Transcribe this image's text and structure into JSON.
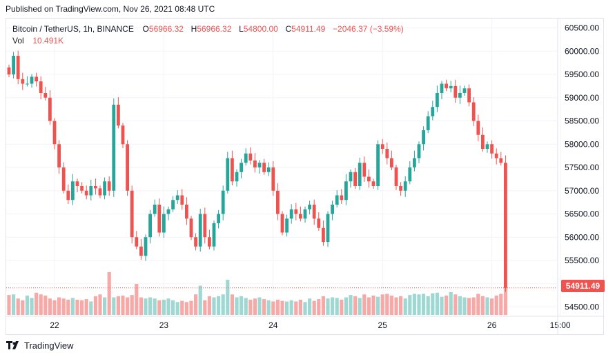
{
  "header": {
    "published": "Published on TradingView.com, Nov 26, 2021 08:48 UTC"
  },
  "legend": {
    "symbol": "Bitcoin / TetherUS, 1h, BINANCE",
    "o_label": "O",
    "o_value": "56966.32",
    "h_label": "H",
    "h_value": "56966.32",
    "l_label": "L",
    "l_value": "54800.00",
    "c_label": "C",
    "c_value": "54911.49",
    "change": "−2046.37 (−3.59%)",
    "vol_label": "Vol",
    "vol_value": "10.491K"
  },
  "brand": {
    "name": "TradingView"
  },
  "colors": {
    "up": "#26a69a",
    "down": "#ef5350",
    "vol_up": "#9fd8d2",
    "vol_down": "#f7a9a7",
    "grid": "#f0f3fa",
    "text": "#131722"
  },
  "chart_data": {
    "type": "candlestick",
    "symbol": "Bitcoin / TetherUS",
    "interval": "1h",
    "exchange": "BINANCE",
    "y_axis": {
      "range": [
        54300,
        60700
      ],
      "ticks": [
        54500,
        55000,
        55500,
        56000,
        56500,
        57000,
        57500,
        58000,
        58500,
        59000,
        59500,
        60000,
        60500
      ],
      "tick_labels": [
        "54500.00",
        "55000.00",
        "55500.00",
        "56000.00",
        "56500.00",
        "57000.00",
        "57500.00",
        "58000.00",
        "58500.00",
        "59000.00",
        "59500.00",
        "60000.00",
        "60500.00"
      ]
    },
    "x_axis": {
      "ticks": [
        {
          "label": "22",
          "candle": 10
        },
        {
          "label": "23",
          "candle": 34
        },
        {
          "label": "24",
          "candle": 58
        },
        {
          "label": "25",
          "candle": 82
        },
        {
          "label": "26",
          "candle": 106
        },
        {
          "label": "15:00",
          "candle": 121
        }
      ]
    },
    "last_price": "54911.49",
    "grid": true,
    "closes": [
      59500,
      59900,
      59400,
      59300,
      59300,
      59450,
      59350,
      59100,
      59000,
      58500,
      58000,
      57500,
      57000,
      56800,
      57200,
      57100,
      57000,
      56900,
      57100,
      57050,
      56900,
      57200,
      57000,
      58850,
      58400,
      58000,
      57000,
      56000,
      55800,
      55600,
      56000,
      56500,
      56700,
      56100,
      56500,
      56600,
      56800,
      56900,
      56700,
      56400,
      56000,
      55800,
      56500,
      56000,
      55800,
      56300,
      56500,
      57000,
      57700,
      57200,
      57400,
      57600,
      57800,
      57650,
      57500,
      57600,
      57400,
      57500,
      57000,
      56500,
      56100,
      56400,
      56600,
      56500,
      56400,
      56600,
      56700,
      56400,
      56200,
      55900,
      56500,
      56700,
      56900,
      56800,
      57200,
      57400,
      57100,
      57600,
      57300,
      57200,
      57100,
      58000,
      57900,
      57700,
      57500,
      57100,
      57000,
      57200,
      57500,
      57700,
      58000,
      58300,
      58600,
      58800,
      59100,
      59300,
      59200,
      59250,
      59000,
      59100,
      59200,
      58900,
      58500,
      58200,
      57900,
      58000,
      57800,
      57700,
      57600,
      54911.49
    ],
    "volumes": [
      3.4,
      3.5,
      2.8,
      2.5,
      3.3,
      2.9,
      3.8,
      3.5,
      3.3,
      2.8,
      2.5,
      3.0,
      2.8,
      2.6,
      2.9,
      2.6,
      2.5,
      2.7,
      2.3,
      3.2,
      3.5,
      3.0,
      7.3,
      3.0,
      3.2,
      3.3,
      3.0,
      3.4,
      5.3,
      3.0,
      2.8,
      3.0,
      2.8,
      2.5,
      2.6,
      2.8,
      2.5,
      2.2,
      2.4,
      2.2,
      2.4,
      3.5,
      5.0,
      2.5,
      3.2,
      3.0,
      3.2,
      3.5,
      6.0,
      3.5,
      3.0,
      3.2,
      2.9,
      2.6,
      2.8,
      3.0,
      2.7,
      2.5,
      2.3,
      2.6,
      2.4,
      2.3,
      2.5,
      2.3,
      2.6,
      2.2,
      2.8,
      2.4,
      2.7,
      3.2,
      2.8,
      3.0,
      2.9,
      2.6,
      3.0,
      3.4,
      3.2,
      2.9,
      3.5,
      3.0,
      3.3,
      3.1,
      3.5,
      3.6,
      3.3,
      3.0,
      3.2,
      2.8,
      3.4,
      3.6,
      3.5,
      3.6,
      3.2,
      3.7,
      3.8,
      3.1,
      3.3,
      3.9,
      3.5,
      3.2,
      3.0,
      2.9,
      3.0,
      3.6,
      3.2,
      3.0,
      2.8,
      3.3,
      3.6,
      4.8
    ]
  }
}
